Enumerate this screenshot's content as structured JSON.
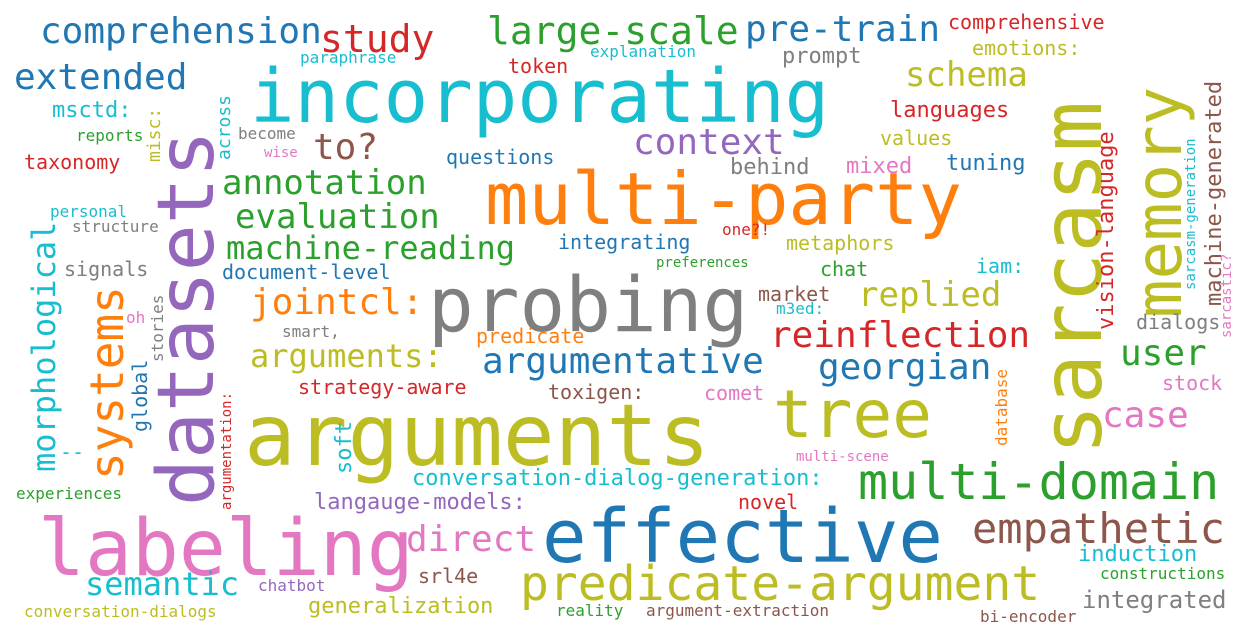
{
  "words": [
    {
      "text": "arguments",
      "color": "#bcbd22"
    },
    {
      "text": "probing",
      "color": "#7f7f7f"
    },
    {
      "text": "multi-party",
      "color": "#ff7f0e"
    },
    {
      "text": "incorporating",
      "color": "#17becf"
    },
    {
      "text": "effective",
      "color": "#1f77b4"
    },
    {
      "text": "labeling",
      "color": "#e377c2"
    },
    {
      "text": "datasets",
      "color": "#9467bd"
    },
    {
      "text": "sarcasm",
      "color": "#bcbd22"
    },
    {
      "text": "memory",
      "color": "#bcbd22"
    },
    {
      "text": "tree",
      "color": "#bcbd22"
    },
    {
      "text": "multi-domain",
      "color": "#2ca02c"
    },
    {
      "text": "predicate-argument",
      "color": "#bcbd22"
    },
    {
      "text": "empathetic",
      "color": "#8c564b"
    },
    {
      "text": "comprehension",
      "color": "#1f77b4"
    },
    {
      "text": "large-scale",
      "color": "#2ca02c"
    },
    {
      "text": "pre-train",
      "color": "#1f77b4"
    },
    {
      "text": "study",
      "color": "#d62728"
    },
    {
      "text": "extended",
      "color": "#1f77b4"
    },
    {
      "text": "schema",
      "color": "#bcbd22"
    },
    {
      "text": "context",
      "color": "#9467bd"
    },
    {
      "text": "to?",
      "color": "#8c564b"
    },
    {
      "text": "annotation",
      "color": "#2ca02c"
    },
    {
      "text": "evaluation",
      "color": "#2ca02c"
    },
    {
      "text": "machine-reading",
      "color": "#2ca02c"
    },
    {
      "text": "systems",
      "color": "#ff7f0e"
    },
    {
      "text": "morphological",
      "color": "#17becf"
    },
    {
      "text": "jointcl:",
      "color": "#ff7f0e"
    },
    {
      "text": "replied",
      "color": "#bcbd22"
    },
    {
      "text": "reinflection",
      "color": "#d62728"
    },
    {
      "text": "arguments:",
      "color": "#bcbd22"
    },
    {
      "text": "argumentative",
      "color": "#1f77b4"
    },
    {
      "text": "georgian",
      "color": "#1f77b4"
    },
    {
      "text": "user",
      "color": "#2ca02c"
    },
    {
      "text": "case",
      "color": "#e377c2"
    },
    {
      "text": "direct",
      "color": "#e377c2"
    },
    {
      "text": "semantic",
      "color": "#17becf"
    },
    {
      "text": "conversation-dialog-generation:",
      "color": "#17becf"
    },
    {
      "text": "langauge-models:",
      "color": "#9467bd"
    },
    {
      "text": "generalization",
      "color": "#bcbd22"
    },
    {
      "text": "integrated",
      "color": "#7f7f7f"
    },
    {
      "text": "induction",
      "color": "#17becf"
    },
    {
      "text": "comprehensive",
      "color": "#d62728"
    },
    {
      "text": "emotions:",
      "color": "#bcbd22"
    },
    {
      "text": "explanation",
      "color": "#17becf"
    },
    {
      "text": "paraphrase",
      "color": "#17becf"
    },
    {
      "text": "token",
      "color": "#d62728"
    },
    {
      "text": "prompt",
      "color": "#7f7f7f"
    },
    {
      "text": "languages",
      "color": "#d62728"
    },
    {
      "text": "values",
      "color": "#bcbd22"
    },
    {
      "text": "msctd:",
      "color": "#17becf"
    },
    {
      "text": "reports",
      "color": "#2ca02c"
    },
    {
      "text": "become",
      "color": "#7f7f7f"
    },
    {
      "text": "wise",
      "color": "#e377c2"
    },
    {
      "text": "taxonomy",
      "color": "#d62728"
    },
    {
      "text": "questions",
      "color": "#1f77b4"
    },
    {
      "text": "behind",
      "color": "#7f7f7f"
    },
    {
      "text": "mixed",
      "color": "#e377c2"
    },
    {
      "text": "tuning",
      "color": "#1f77b4"
    },
    {
      "text": "personal",
      "color": "#17becf"
    },
    {
      "text": "structure",
      "color": "#7f7f7f"
    },
    {
      "text": "integrating",
      "color": "#1f77b4"
    },
    {
      "text": "one?!",
      "color": "#d62728"
    },
    {
      "text": "metaphors",
      "color": "#bcbd22"
    },
    {
      "text": "signals",
      "color": "#7f7f7f"
    },
    {
      "text": "document-level",
      "color": "#1f77b4"
    },
    {
      "text": "preferences",
      "color": "#2ca02c"
    },
    {
      "text": "chat",
      "color": "#2ca02c"
    },
    {
      "text": "iam:",
      "color": "#17becf"
    },
    {
      "text": "market",
      "color": "#8c564b"
    },
    {
      "text": "m3ed:",
      "color": "#17becf"
    },
    {
      "text": "oh",
      "color": "#e377c2"
    },
    {
      "text": "smart,",
      "color": "#7f7f7f"
    },
    {
      "text": "predicate",
      "color": "#ff7f0e"
    },
    {
      "text": "dialogs",
      "color": "#7f7f7f"
    },
    {
      "text": "strategy-aware",
      "color": "#d62728"
    },
    {
      "text": "toxigen:",
      "color": "#8c564b"
    },
    {
      "text": "comet",
      "color": "#e377c2"
    },
    {
      "text": "stock",
      "color": "#e377c2"
    },
    {
      "text": "--",
      "color": "#17becf"
    },
    {
      "text": "soft",
      "color": "#17becf"
    },
    {
      "text": "multi-scene",
      "color": "#e377c2"
    },
    {
      "text": "experiences",
      "color": "#2ca02c"
    },
    {
      "text": "novel",
      "color": "#d62728"
    },
    {
      "text": "srl4e",
      "color": "#8c564b"
    },
    {
      "text": "chatbot",
      "color": "#9467bd"
    },
    {
      "text": "conversation-dialogs",
      "color": "#bcbd22"
    },
    {
      "text": "reality",
      "color": "#2ca02c"
    },
    {
      "text": "argument-extraction",
      "color": "#8c564b"
    },
    {
      "text": "bi-encoder",
      "color": "#8c564b"
    },
    {
      "text": "constructions",
      "color": "#2ca02c"
    },
    {
      "text": "misc:",
      "color": "#bcbd22"
    },
    {
      "text": "across",
      "color": "#17becf"
    },
    {
      "text": "stories",
      "color": "#7f7f7f"
    },
    {
      "text": "global",
      "color": "#1f77b4"
    },
    {
      "text": "argumentation:",
      "color": "#d62728"
    },
    {
      "text": "database",
      "color": "#ff7f0e"
    },
    {
      "text": "vision-language",
      "color": "#d62728"
    },
    {
      "text": "machine-generated",
      "color": "#8c564b"
    },
    {
      "text": "sarcasm-generation",
      "color": "#17becf"
    },
    {
      "text": "sarcastic?",
      "color": "#e377c2"
    }
  ]
}
